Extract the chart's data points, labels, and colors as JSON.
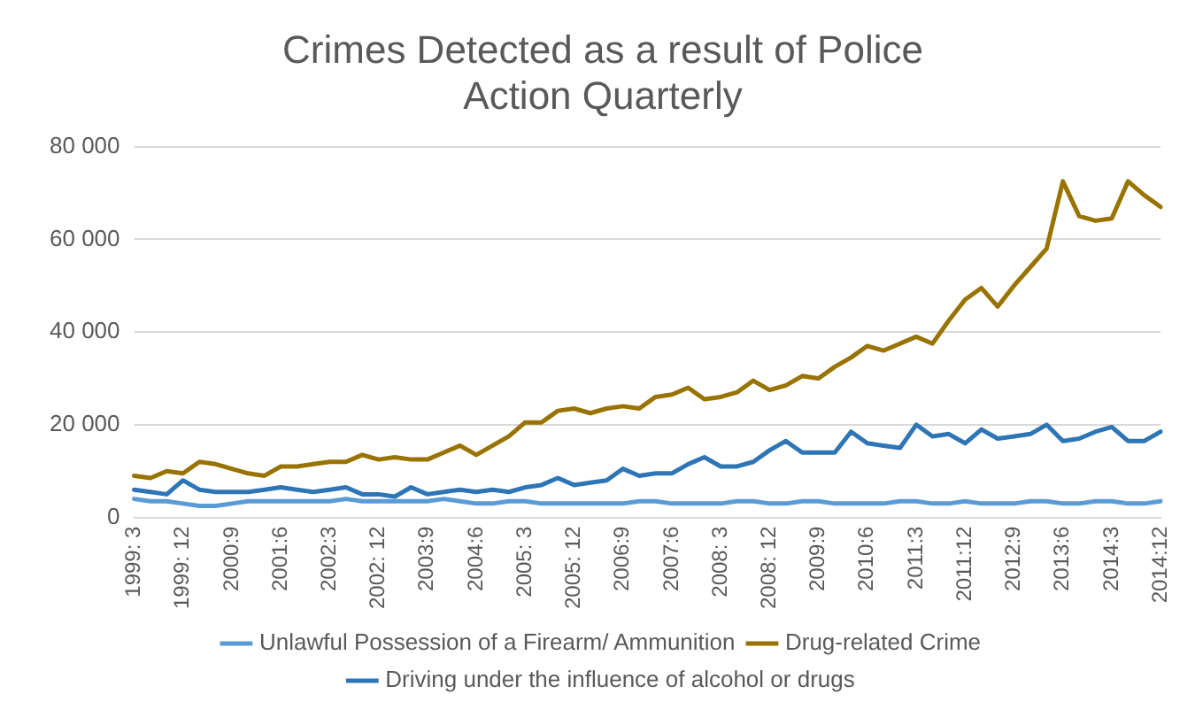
{
  "chart_data": {
    "type": "line",
    "title": "Crimes Detected as a result of Police Action Quarterly",
    "categories": [
      "1999: 3",
      null,
      null,
      "1999: 12",
      null,
      null,
      "2000:9",
      null,
      null,
      "2001:6",
      null,
      null,
      "2002:3",
      null,
      null,
      "2002: 12",
      null,
      null,
      "2003:9",
      null,
      null,
      "2004:6",
      null,
      null,
      "2005: 3",
      null,
      null,
      "2005: 12",
      null,
      null,
      "2006:9",
      null,
      null,
      "2007:6",
      null,
      null,
      "2008: 3",
      null,
      null,
      "2008: 12",
      null,
      null,
      "2009:9",
      null,
      null,
      "2010:6",
      null,
      null,
      "2011:3",
      null,
      null,
      "2011:12",
      null,
      null,
      "2012:9",
      null,
      null,
      "2013:6",
      null,
      null,
      "2014:3",
      null,
      null,
      "2014:12"
    ],
    "series": [
      {
        "name": "Unlawful Possession of a Firearm/ Ammunition",
        "color": "#5b9bd5",
        "values": [
          4000,
          3500,
          3500,
          3000,
          2500,
          2500,
          3000,
          3500,
          3500,
          3500,
          3500,
          3500,
          3500,
          4000,
          3500,
          3500,
          3500,
          3500,
          3500,
          4000,
          3500,
          3000,
          3000,
          3500,
          3500,
          3000,
          3000,
          3000,
          3000,
          3000,
          3000,
          3500,
          3500,
          3000,
          3000,
          3000,
          3000,
          3500,
          3500,
          3000,
          3000,
          3500,
          3500,
          3000,
          3000,
          3000,
          3000,
          3500,
          3500,
          3000,
          3000,
          3500,
          3000,
          3000,
          3000,
          3500,
          3500,
          3000,
          3000,
          3500,
          3500,
          3000,
          3000,
          3500
        ]
      },
      {
        "name": "Drug-related Crime",
        "color": "#997300",
        "values": [
          9000,
          8500,
          10000,
          9500,
          12000,
          11500,
          10500,
          9500,
          9000,
          11000,
          11000,
          11500,
          12000,
          12000,
          13500,
          12500,
          13000,
          12500,
          12500,
          14000,
          15500,
          13500,
          15500,
          17500,
          20500,
          20500,
          23000,
          23500,
          22500,
          23500,
          24000,
          23500,
          26000,
          26500,
          28000,
          25500,
          26000,
          27000,
          29500,
          27500,
          28500,
          30500,
          30000,
          32500,
          34500,
          37000,
          36000,
          37500,
          39000,
          37500,
          42500,
          47000,
          49500,
          45500,
          50000,
          54000,
          58000,
          72500,
          65000,
          64000,
          64500,
          72500,
          69500,
          67000
        ]
      },
      {
        "name": "Driving under the influence of alcohol or drugs",
        "color": "#2e75b6",
        "values": [
          6000,
          5500,
          5000,
          8000,
          6000,
          5500,
          5500,
          5500,
          6000,
          6500,
          6000,
          5500,
          6000,
          6500,
          5000,
          5000,
          4500,
          6500,
          5000,
          5500,
          6000,
          5500,
          6000,
          5500,
          6500,
          7000,
          8500,
          7000,
          7500,
          8000,
          10500,
          9000,
          9500,
          9500,
          11500,
          13000,
          11000,
          11000,
          12000,
          14500,
          16500,
          14000,
          14000,
          14000,
          18500,
          16000,
          15500,
          15000,
          20000,
          17500,
          18000,
          16000,
          19000,
          17000,
          17500,
          18000,
          20000,
          16500,
          17000,
          18500,
          19500,
          16500,
          16500,
          18500
        ]
      }
    ],
    "ylim": [
      0,
      80000
    ],
    "yticks": [
      {
        "value": 0,
        "label": "0"
      },
      {
        "value": 20000,
        "label": "20 000"
      },
      {
        "value": 40000,
        "label": "40 000"
      },
      {
        "value": 60000,
        "label": "60 000"
      },
      {
        "value": 80000,
        "label": "80 000"
      }
    ],
    "grid": "y",
    "legend": "bottom",
    "marker": "none",
    "line_style": "solid"
  }
}
